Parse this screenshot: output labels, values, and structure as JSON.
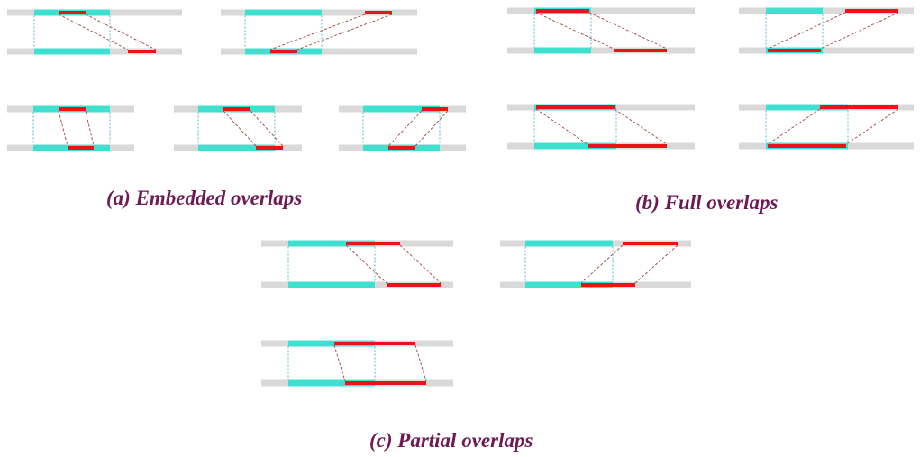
{
  "colors": {
    "track": "#d9d9d9",
    "interval_a": "#40e0d0",
    "interval_b": "#e8141a",
    "guide": "#3bb3c8",
    "connector": "#a0453f",
    "caption": "#6e1a53"
  },
  "captions": {
    "embedded": "(a) Embedded overlaps",
    "full": "(b) Full overlaps",
    "partial": "(c) Partial overlaps"
  },
  "groups": [
    {
      "key": "embedded",
      "panel_count": 5
    },
    {
      "key": "full",
      "panel_count": 4
    },
    {
      "key": "partial",
      "panel_count": 3
    }
  ]
}
